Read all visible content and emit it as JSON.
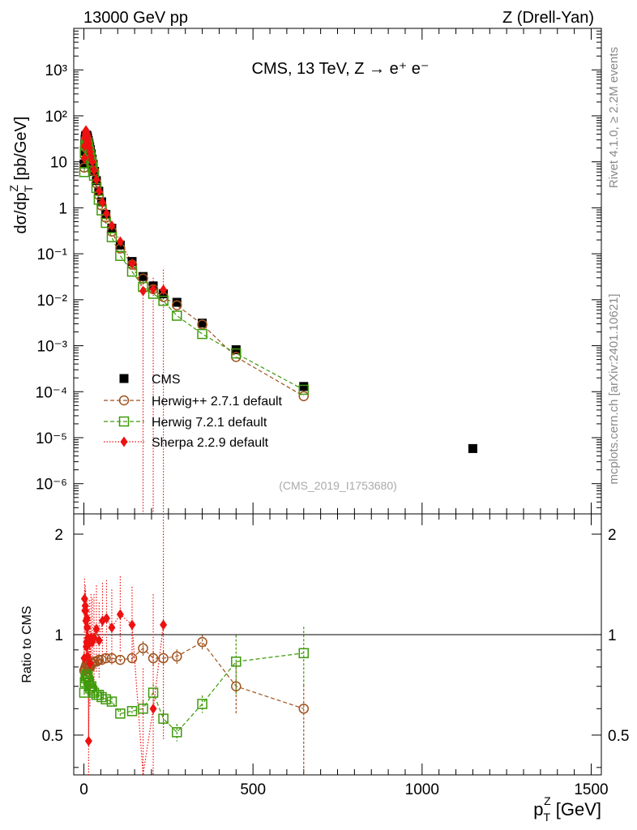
{
  "header": {
    "left": "13000 GeV pp",
    "right": "Z (Drell-Yan)"
  },
  "side_labels": {
    "rivet": "Rivet 4.1.0, ≥ 2.2M events",
    "source": "mcplots.cern.ch [arXiv:2401.10621]"
  },
  "top_panel": {
    "title": "CMS, 13 TeV, Z →  e⁺ e⁻",
    "ylabel": "dσ/dp",
    "ylabel_sub": "T",
    "ylabel_sup": "Z",
    "ylabel_units": " [pb/GeV]",
    "analysis_id": "(CMS_2019_I1753680)",
    "y_ticks": [
      {
        "label": "10⁻⁶",
        "value": 1e-06
      },
      {
        "label": "10⁻⁵",
        "value": 1e-05
      },
      {
        "label": "10⁻⁴",
        "value": 0.0001
      },
      {
        "label": "10⁻³",
        "value": 0.001
      },
      {
        "label": "10⁻²",
        "value": 0.01
      },
      {
        "label": "10⁻¹",
        "value": 0.1
      },
      {
        "label": "1",
        "value": 1
      },
      {
        "label": "10",
        "value": 10
      },
      {
        "label": "10²",
        "value": 100
      },
      {
        "label": "10³",
        "value": 1000
      }
    ]
  },
  "bottom_panel": {
    "ylabel": "Ratio to CMS",
    "y_ticks": [
      {
        "label": "0.5",
        "value": 0.5
      },
      {
        "label": "1",
        "value": 1
      },
      {
        "label": "2",
        "value": 2
      }
    ]
  },
  "x_axis": {
    "label": "p",
    "label_sub": "T",
    "label_sup": "Z",
    "label_units": " [GeV]",
    "ticks": [
      {
        "label": "0",
        "value": 0
      },
      {
        "label": "500",
        "value": 500
      },
      {
        "label": "1000",
        "value": 1000
      },
      {
        "label": "1500",
        "value": 1500
      }
    ]
  },
  "legend": [
    {
      "label": "CMS",
      "color": "#000000",
      "marker": "filled-square"
    },
    {
      "label": "Herwig++ 2.7.1 default",
      "color": "#a0521d",
      "marker": "open-circle"
    },
    {
      "label": "Herwig 7.2.1 default",
      "color": "#3e9a0a",
      "marker": "open-square"
    },
    {
      "label": "Sherpa 2.2.9 default",
      "color": "#ee1111",
      "marker": "filled-diamond"
    }
  ],
  "chart_data": {
    "type": "scatter",
    "xlim": [
      -30,
      1530
    ],
    "ylim_top": [
      2.2e-07,
      8000
    ],
    "ylim_ratio": [
      0.38,
      2.3
    ],
    "y_scale": "log",
    "ratio_scale": "log",
    "cms": {
      "x": [
        0.5,
        1.5,
        2.5,
        3.5,
        4.5,
        5.5,
        6.5,
        7.5,
        8.5,
        9.5,
        11,
        13,
        15,
        17,
        19,
        21.5,
        24.5,
        27.5,
        31.5,
        37,
        44,
        52.5,
        65,
        82.5,
        107.5,
        142.5,
        175,
        205,
        235,
        275,
        350,
        450,
        650,
        1150
      ],
      "y": [
        9,
        17,
        25,
        31,
        35,
        37,
        38,
        38,
        37.5,
        36,
        33,
        29,
        25,
        21.5,
        18.5,
        15,
        11.5,
        8.8,
        6.2,
        3.9,
        2.3,
        1.35,
        0.72,
        0.36,
        0.155,
        0.068,
        0.032,
        0.02,
        0.0135,
        0.0088,
        0.0031,
        0.00082,
        0.00013,
        5.8e-06
      ]
    },
    "herwigpp": {
      "x": [
        1,
        3,
        5,
        7,
        9,
        11,
        13,
        15,
        17,
        19,
        22,
        25,
        30,
        37,
        44,
        52.5,
        65,
        82.5,
        107.5,
        142.5,
        175,
        205,
        235,
        275,
        350,
        450,
        650
      ],
      "y": [
        7.5,
        21,
        29,
        32,
        31,
        27,
        23.5,
        20,
        17,
        14.5,
        12,
        9.5,
        6.3,
        3.4,
        1.9,
        1.12,
        0.61,
        0.305,
        0.13,
        0.058,
        0.029,
        0.017,
        0.0115,
        0.0076,
        0.0029,
        0.00057,
        8e-05
      ],
      "ratio": [
        0.78,
        0.79,
        0.8,
        0.81,
        0.82,
        0.8,
        0.79,
        0.8,
        0.81,
        0.8,
        0.82,
        0.82,
        0.83,
        0.83,
        0.84,
        0.84,
        0.85,
        0.85,
        0.84,
        0.85,
        0.91,
        0.85,
        0.85,
        0.86,
        0.95,
        0.7,
        0.6
      ]
    },
    "herwig7": {
      "x": [
        1,
        3,
        5,
        7,
        9,
        11,
        13,
        15,
        17,
        19,
        22,
        25,
        30,
        37,
        44,
        52.5,
        65,
        82.5,
        107.5,
        142.5,
        175,
        205,
        235,
        275,
        350,
        450,
        650
      ],
      "y": [
        6,
        15.5,
        23,
        26.5,
        26.5,
        24,
        21,
        17.5,
        14.5,
        12.5,
        10,
        7.6,
        5,
        2.7,
        1.5,
        0.88,
        0.47,
        0.23,
        0.09,
        0.041,
        0.019,
        0.0135,
        0.0095,
        0.0045,
        0.0018,
        0.00068,
        0.00011
      ],
      "ratio": [
        0.67,
        0.72,
        0.74,
        0.75,
        0.76,
        0.75,
        0.73,
        0.72,
        0.7,
        0.69,
        0.7,
        0.68,
        0.67,
        0.66,
        0.66,
        0.65,
        0.64,
        0.63,
        0.58,
        0.59,
        0.6,
        0.67,
        0.56,
        0.51,
        0.62,
        0.83,
        0.88
      ]
    },
    "sherpa": {
      "x": [
        1,
        2,
        3,
        4,
        5,
        6,
        7,
        8,
        9,
        10,
        11,
        12,
        14,
        16,
        18,
        21,
        25,
        30,
        37,
        45,
        55,
        67,
        82.5,
        107.5,
        142.5,
        175,
        205,
        235
      ],
      "y": [
        12,
        22,
        33,
        40,
        46,
        48,
        47,
        44,
        41,
        38,
        35,
        30,
        25,
        20,
        16.5,
        13,
        10,
        6.5,
        4.1,
        2.3,
        1.3,
        0.75,
        0.41,
        0.185,
        0.061,
        0.0155,
        0.017,
        0.0165
      ],
      "ratio": [
        0.85,
        1.28,
        1.18,
        1.22,
        1.18,
        1.1,
        0.92,
        0.95,
        1.12,
        1.05,
        0.86,
        0.98,
        0.48,
        0.94,
        0.82,
        0.98,
        0.95,
        0.98,
        1.04,
        0.96,
        1.1,
        1.12,
        1.05,
        1.15,
        1.07,
        0.36,
        0.6,
        1.07
      ]
    }
  }
}
